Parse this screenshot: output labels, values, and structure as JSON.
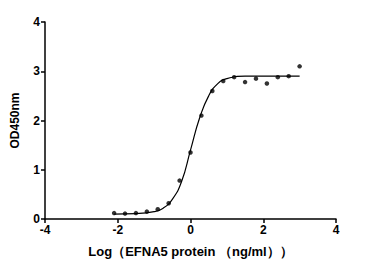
{
  "chart_data": {
    "type": "scatter",
    "x_label": "Log（EFNA5 protein （ng/ml））",
    "y_label": "OD450nm",
    "xlim": [
      -4,
      4
    ],
    "xticks": [
      -4,
      -2,
      0,
      2,
      4
    ],
    "ylim": [
      0,
      4
    ],
    "yticks": [
      0,
      1,
      2,
      3,
      4
    ],
    "grid": false,
    "series": [
      {
        "type": "scatter",
        "color": "#000000",
        "marker": "circle",
        "x": [
          -2.1,
          -1.8,
          -1.5,
          -1.2,
          -0.9,
          -0.6,
          -0.3,
          0.0,
          0.3,
          0.6,
          0.9,
          1.2,
          1.5,
          1.8,
          2.1,
          2.4,
          2.7,
          3.0
        ],
        "values": [
          0.12,
          0.11,
          0.12,
          0.15,
          0.2,
          0.32,
          0.78,
          1.35,
          2.1,
          2.6,
          2.8,
          2.88,
          2.78,
          2.85,
          2.75,
          2.88,
          2.9,
          3.1
        ]
      },
      {
        "type": "line",
        "color": "#000000",
        "line_style": "solid",
        "x": [
          -2.1,
          -1.5,
          -1.0,
          -0.75,
          -0.5,
          -0.25,
          0.0,
          0.25,
          0.5,
          0.75,
          1.0,
          1.5,
          2.0,
          3.0
        ],
        "values": [
          0.1,
          0.11,
          0.15,
          0.22,
          0.4,
          0.75,
          1.4,
          2.05,
          2.5,
          2.75,
          2.85,
          2.9,
          2.9,
          2.9
        ]
      }
    ]
  }
}
